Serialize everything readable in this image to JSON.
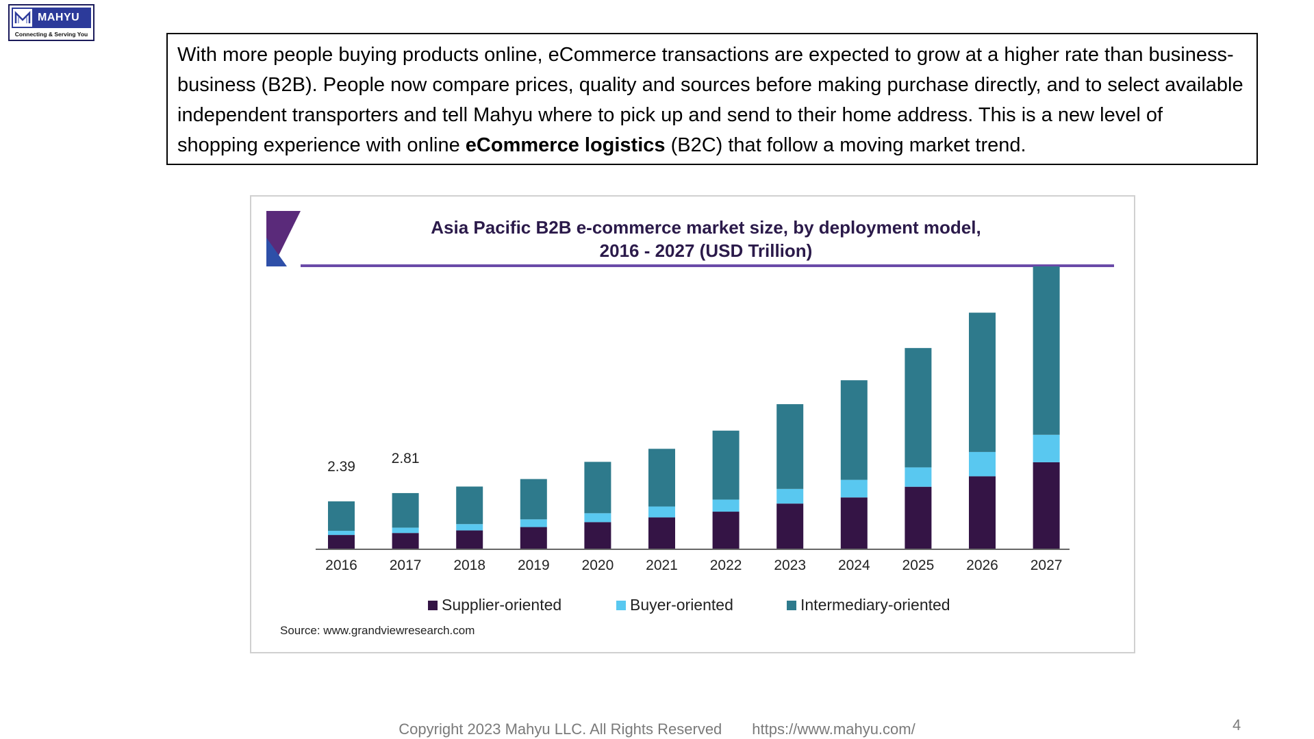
{
  "logo": {
    "name": "MAHYU",
    "tagline": "Connecting & Serving You"
  },
  "intro": {
    "part1": "With more people buying products online, eCommerce transactions are expected to grow at a higher rate than business-business (B2B). People now compare prices, quality and sources before making purchase directly, and to select available independent transporters and tell Mahyu where to pick up and send to their home address. This is a new level of shopping experience with online ",
    "bold": "eCommerce logistics",
    "part2": " (B2C) that follow a moving market trend."
  },
  "chart_data": {
    "type": "bar",
    "stacked": true,
    "title_line1": "Asia Pacific B2B e-commerce market size, by deployment model,",
    "title_line2": "2016 - 2027 (USD Trillion)",
    "categories": [
      "2016",
      "2017",
      "2018",
      "2019",
      "2020",
      "2021",
      "2022",
      "2023",
      "2024",
      "2025",
      "2026",
      "2027"
    ],
    "series": [
      {
        "name": "Supplier-oriented",
        "color": "#341445",
        "values": [
          0.69,
          0.79,
          0.92,
          1.09,
          1.34,
          1.58,
          1.87,
          2.28,
          2.59,
          3.13,
          3.66,
          4.37
        ]
      },
      {
        "name": "Buyer-oriented",
        "color": "#59c8f0",
        "values": [
          0.21,
          0.27,
          0.32,
          0.39,
          0.45,
          0.55,
          0.61,
          0.74,
          0.89,
          0.98,
          1.23,
          1.39
        ]
      },
      {
        "name": "Intermediary-oriented",
        "color": "#2e7a8c",
        "values": [
          1.49,
          1.75,
          1.9,
          2.04,
          2.6,
          2.92,
          3.49,
          4.29,
          5.04,
          6.04,
          7.05,
          8.52
        ]
      }
    ],
    "data_labels": [
      {
        "category": "2016",
        "text": "2.39"
      },
      {
        "category": "2017",
        "text": "2.81"
      }
    ],
    "ylim": [
      0,
      14.8
    ],
    "legend_position": "bottom",
    "source": "Source: www.grandviewresearch.com",
    "accent_colors": [
      "#5a2a7a",
      "#2e4fa8"
    ]
  },
  "footer": {
    "copyright": "Copyright 2023 Mahyu LLC. All Rights Reserved",
    "url": "https://www.mahyu.com/",
    "page_number": "4"
  }
}
